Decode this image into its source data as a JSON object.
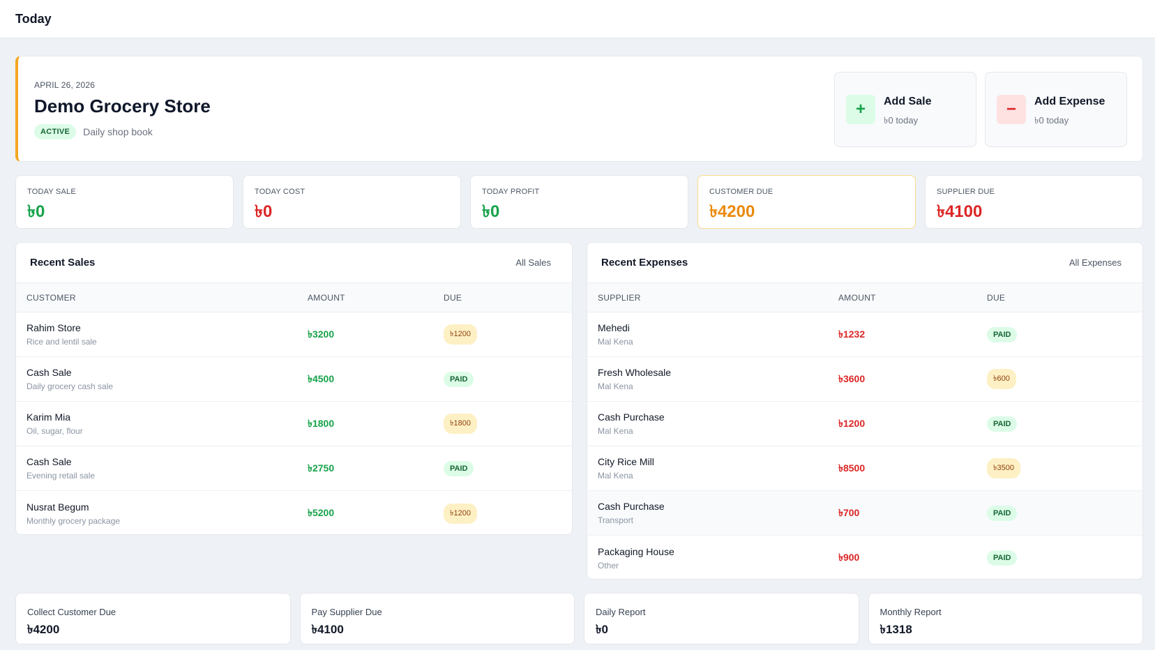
{
  "page": {
    "title": "Today"
  },
  "hero": {
    "date": "APRIL 26, 2026",
    "store_name": "Demo Grocery Store",
    "status": "ACTIVE",
    "subtitle": "Daily shop book",
    "accent_color": "#f5a623"
  },
  "actions": {
    "add_sale": {
      "icon": "+",
      "icon_name": "plus-icon",
      "title": "Add Sale",
      "subtitle": "৳0 today"
    },
    "add_expense": {
      "icon": "−",
      "icon_name": "minus-icon",
      "title": "Add Expense",
      "subtitle": "৳0 today"
    }
  },
  "stats": [
    {
      "label": "TODAY SALE",
      "value": "৳0",
      "color": "#16a34a"
    },
    {
      "label": "TODAY COST",
      "value": "৳0",
      "color": "#dc2626"
    },
    {
      "label": "TODAY PROFIT",
      "value": "৳0",
      "color": "#16a34a"
    },
    {
      "label": "CUSTOMER DUE",
      "value": "৳4200",
      "color": "#ea8a0c"
    },
    {
      "label": "SUPPLIER DUE",
      "value": "৳4100",
      "color": "#dc2626"
    }
  ],
  "recent_sales": {
    "title": "Recent Sales",
    "link": "All Sales",
    "columns": [
      "CUSTOMER",
      "AMOUNT",
      "DUE"
    ],
    "rows": [
      {
        "name": "Rahim Store",
        "desc": "Rice and lentil sale",
        "amount": "৳3200",
        "due": "৳1200"
      },
      {
        "name": "Cash Sale",
        "desc": "Daily grocery cash sale",
        "amount": "৳4500",
        "due": "PAID"
      },
      {
        "name": "Karim Mia",
        "desc": "Oil, sugar, flour",
        "amount": "৳1800",
        "due": "৳1800"
      },
      {
        "name": "Cash Sale",
        "desc": "Evening retail sale",
        "amount": "৳2750",
        "due": "PAID"
      },
      {
        "name": "Nusrat Begum",
        "desc": "Monthly grocery package",
        "amount": "৳5200",
        "due": "৳1200"
      }
    ]
  },
  "recent_expenses": {
    "title": "Recent Expenses",
    "link": "All Expenses",
    "columns": [
      "SUPPLIER",
      "AMOUNT",
      "DUE"
    ],
    "rows": [
      {
        "name": "Mehedi",
        "desc": "Mal Kena",
        "amount": "৳1232",
        "due": "PAID"
      },
      {
        "name": "Fresh Wholesale",
        "desc": "Mal Kena",
        "amount": "৳3600",
        "due": "৳600"
      },
      {
        "name": "Cash Purchase",
        "desc": "Mal Kena",
        "amount": "৳1200",
        "due": "PAID"
      },
      {
        "name": "City Rice Mill",
        "desc": "Mal Kena",
        "amount": "৳8500",
        "due": "৳3500"
      },
      {
        "name": "Cash Purchase",
        "desc": "Transport",
        "amount": "৳700",
        "due": "PAID"
      },
      {
        "name": "Packaging House",
        "desc": "Other",
        "amount": "৳900",
        "due": "PAID"
      }
    ]
  },
  "quick_links": [
    {
      "label": "Collect Customer Due",
      "value": "৳4200"
    },
    {
      "label": "Pay Supplier Due",
      "value": "৳4100"
    },
    {
      "label": "Daily Report",
      "value": "৳0"
    },
    {
      "label": "Monthly Report",
      "value": "৳1318"
    }
  ]
}
